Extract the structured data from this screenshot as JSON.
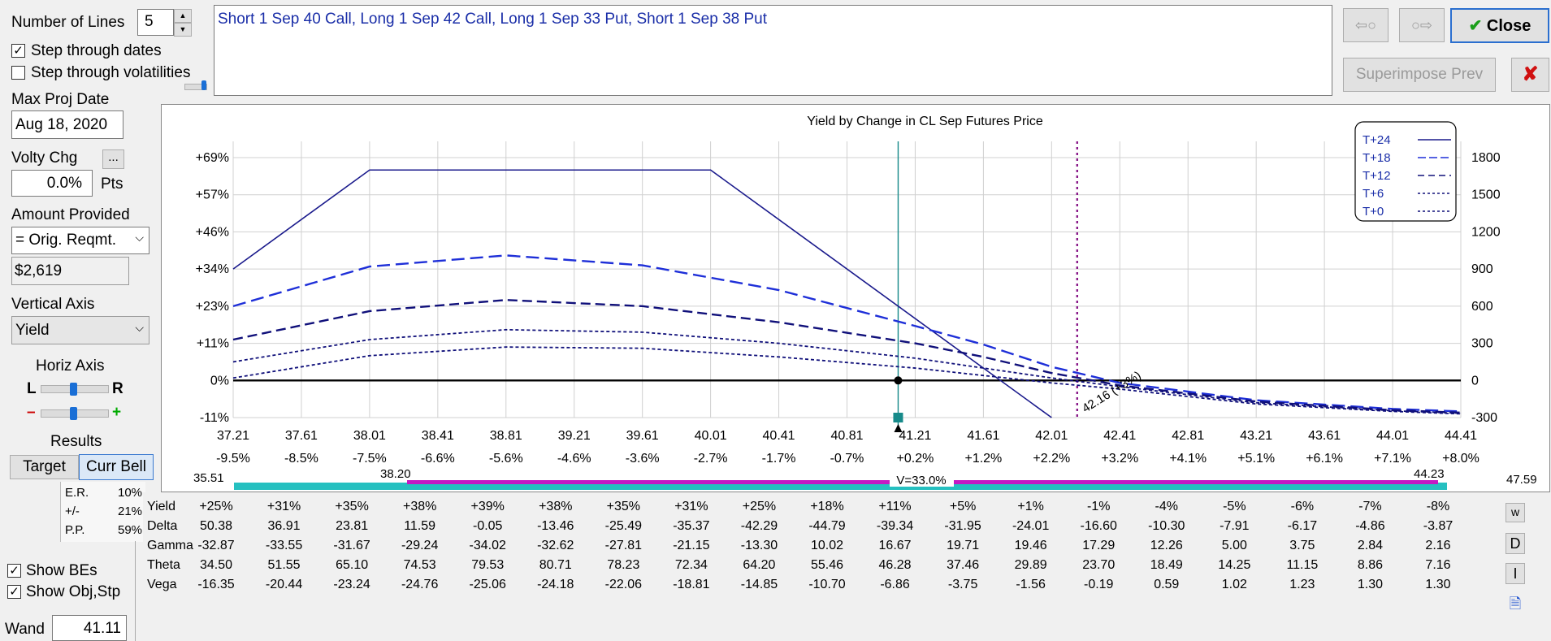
{
  "controls": {
    "num_lines_label": "Number of Lines",
    "num_lines_value": "5",
    "step_dates_label": "Step through dates",
    "step_dates_checked": true,
    "step_vols_label": "Step through volatilities",
    "step_vols_checked": false,
    "max_proj_date_label": "Max Proj Date",
    "max_proj_date_value": "Aug 18, 2020",
    "volty_chg_label": "Volty Chg",
    "volty_btn": "...",
    "volty_value": "0.0%",
    "volty_unit": "Pts",
    "amount_label": "Amount Provided",
    "amount_select": "= Orig. Reqmt.",
    "amount_value": "$2,619",
    "vertical_axis_label": "Vertical Axis",
    "vertical_axis_select": "Yield",
    "horiz_axis_label": "Horiz Axis",
    "horiz_l": "L",
    "horiz_r": "R",
    "minus": "–",
    "plus": "+",
    "results_label": "Results",
    "target_tab": "Target",
    "currbell_tab": "Curr Bell",
    "er_label": "E.R.",
    "er_value": "10%",
    "pm_label": "+/-",
    "pm_value": "21%",
    "pp_label": "P.P.",
    "pp_value": "59%",
    "show_bes_label": "Show BEs",
    "show_bes_checked": true,
    "show_obj_label": "Show Obj,Stp",
    "show_obj_checked": true,
    "wand_label": "Wand",
    "wand_value": "41.11"
  },
  "strategy_text": "Short 1 Sep 40 Call, Long 1 Sep 42 Call, Long 1 Sep 33 Put, Short 1 Sep 38 Put",
  "buttons": {
    "prev_icon": "⇦○",
    "next_icon": "○⇨",
    "close": "Close",
    "close_check": "✔",
    "superimpose": "Superimpose Prev",
    "x": "✘",
    "side_w": "w",
    "side_d": "D",
    "side_i": "I",
    "side_doc": "🗎"
  },
  "chart_data": {
    "type": "line",
    "title": "Yield by Change in CL Sep Futures Price",
    "x_ticks": [
      "37.21",
      "37.61",
      "38.01",
      "38.41",
      "38.81",
      "39.21",
      "39.61",
      "40.01",
      "40.41",
      "40.81",
      "41.21",
      "41.61",
      "42.01",
      "42.41",
      "42.81",
      "43.21",
      "43.61",
      "44.01",
      "44.41"
    ],
    "x_pct_ticks": [
      "-9.5%",
      "-8.5%",
      "-7.5%",
      "-6.6%",
      "-5.6%",
      "-4.6%",
      "-3.6%",
      "-2.7%",
      "-1.7%",
      "-0.7%",
      "+0.2%",
      "+1.2%",
      "+2.2%",
      "+3.2%",
      "+4.1%",
      "+5.1%",
      "+6.1%",
      "+7.1%",
      "+8.0%"
    ],
    "xlim": [
      37.21,
      44.41
    ],
    "y_left_ticks": [
      "+69%",
      "+57%",
      "+46%",
      "+34%",
      "+23%",
      "+11%",
      "0%",
      "-11%"
    ],
    "y_right_ticks": [
      "1800",
      "1500",
      "1200",
      "900",
      "600",
      "300",
      "0",
      "-300"
    ],
    "ylim_right": [
      -300,
      1800
    ],
    "grid": true,
    "legend_position": "top-right",
    "current_price": 41.11,
    "breakeven_label": "42.16 (+3%)",
    "breakeven_x": 42.16,
    "series": [
      {
        "name": "T+24",
        "color": "#1a1a8c",
        "dash": "solid",
        "width": 1.6,
        "x": [
          37.21,
          38.01,
          40.01,
          42.01
        ],
        "y": [
          900,
          1700,
          1700,
          -300
        ]
      },
      {
        "name": "T+18",
        "color": "#1e2fd8",
        "dash": "16,7",
        "width": 2.4,
        "x": [
          37.21,
          38.01,
          38.81,
          39.61,
          40.41,
          41.21,
          41.61,
          42.01,
          42.41,
          43.21,
          44.01,
          44.41
        ],
        "y": [
          600,
          920,
          1010,
          930,
          730,
          440,
          290,
          110,
          -20,
          -160,
          -230,
          -250
        ]
      },
      {
        "name": "T+12",
        "color": "#10107a",
        "dash": "12,6",
        "width": 2.4,
        "x": [
          37.21,
          38.01,
          38.81,
          39.61,
          40.41,
          41.21,
          41.61,
          42.01,
          42.41,
          43.21,
          44.01,
          44.41
        ],
        "y": [
          330,
          560,
          650,
          600,
          470,
          300,
          190,
          60,
          -40,
          -170,
          -240,
          -260
        ]
      },
      {
        "name": "T+6",
        "color": "#10107a",
        "dash": "4,3",
        "width": 1.8,
        "x": [
          37.21,
          38.01,
          38.81,
          39.61,
          40.41,
          41.21,
          41.61,
          42.01,
          42.41,
          43.21,
          44.01,
          44.41
        ],
        "y": [
          150,
          330,
          410,
          390,
          300,
          180,
          100,
          20,
          -50,
          -180,
          -245,
          -265
        ]
      },
      {
        "name": "T+0",
        "color": "#10107a",
        "dash": "4,3",
        "width": 1.8,
        "x": [
          37.21,
          38.01,
          38.81,
          39.61,
          40.41,
          41.21,
          41.61,
          42.01,
          42.41,
          43.21,
          44.01,
          44.41
        ],
        "y": [
          20,
          200,
          270,
          260,
          190,
          100,
          40,
          -20,
          -70,
          -190,
          -250,
          -270
        ]
      }
    ]
  },
  "range_bar": {
    "left": "35.51",
    "mid_left": "38.20",
    "center": "V=33.0%",
    "right": "44.23",
    "far_right": "47.59"
  },
  "greeks": {
    "rows": [
      {
        "label": "Yield",
        "values": [
          "+25%",
          "+31%",
          "+35%",
          "+38%",
          "+39%",
          "+38%",
          "+35%",
          "+31%",
          "+25%",
          "+18%",
          "+11%",
          "+5%",
          "+1%",
          "-1%",
          "-4%",
          "-5%",
          "-6%",
          "-7%",
          "-8%"
        ]
      },
      {
        "label": "Delta",
        "values": [
          "50.38",
          "36.91",
          "23.81",
          "11.59",
          "-0.05",
          "-13.46",
          "-25.49",
          "-35.37",
          "-42.29",
          "-44.79",
          "-39.34",
          "-31.95",
          "-24.01",
          "-16.60",
          "-10.30",
          "-7.91",
          "-6.17",
          "-4.86",
          "-3.87"
        ]
      },
      {
        "label": "Gamma",
        "values": [
          "-32.87",
          "-33.55",
          "-31.67",
          "-29.24",
          "-34.02",
          "-32.62",
          "-27.81",
          "-21.15",
          "-13.30",
          "10.02",
          "16.67",
          "19.71",
          "19.46",
          "17.29",
          "12.26",
          "5.00",
          "3.75",
          "2.84",
          "2.16"
        ]
      },
      {
        "label": "Theta",
        "values": [
          "34.50",
          "51.55",
          "65.10",
          "74.53",
          "79.53",
          "80.71",
          "78.23",
          "72.34",
          "64.20",
          "55.46",
          "46.28",
          "37.46",
          "29.89",
          "23.70",
          "18.49",
          "14.25",
          "11.15",
          "8.86",
          "7.16"
        ]
      },
      {
        "label": "Vega",
        "values": [
          "-16.35",
          "-20.44",
          "-23.24",
          "-24.76",
          "-25.06",
          "-24.18",
          "-22.06",
          "-18.81",
          "-14.85",
          "-10.70",
          "-6.86",
          "-3.75",
          "-1.56",
          "-0.19",
          "0.59",
          "1.02",
          "1.23",
          "1.30",
          "1.30"
        ]
      }
    ]
  }
}
